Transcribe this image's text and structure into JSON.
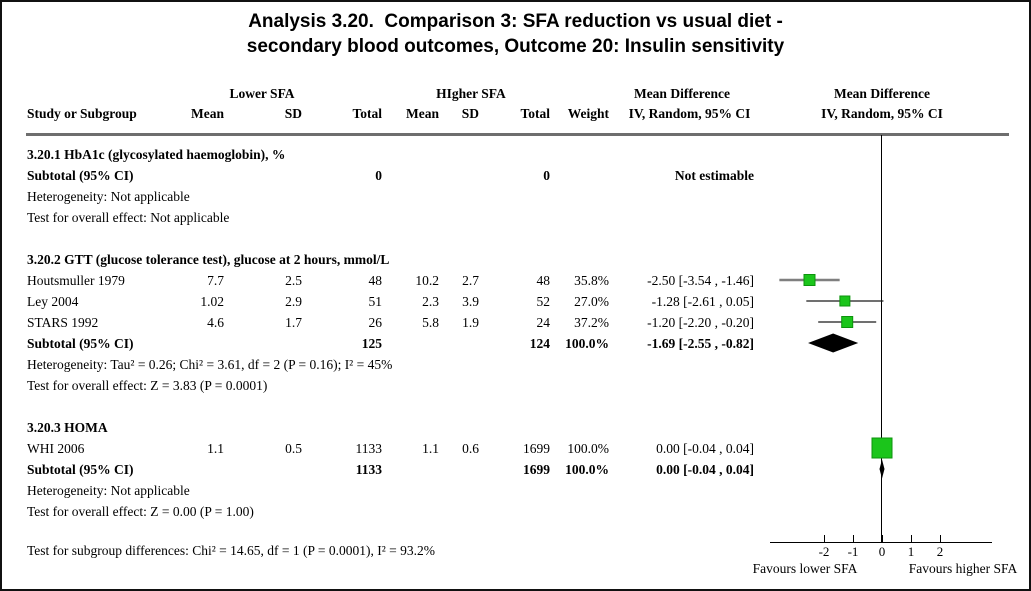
{
  "title": {
    "line1": "Analysis 3.20.  Comparison 3: SFA reduction vs usual diet -",
    "line2": "secondary blood outcomes, Outcome 20: Insulin sensitivity"
  },
  "header": {
    "group_lower": "Lower SFA",
    "group_higher": "HIgher SFA",
    "mean_difference_stats": "Mean Difference",
    "mean_difference_plot": "Mean Difference",
    "study": "Study or Subgroup",
    "mean1": "Mean",
    "sd1": "SD",
    "total1": "Total",
    "mean2": "Mean",
    "sd2": "SD",
    "total2": "Total",
    "weight": "Weight",
    "iv_stats": "IV, Random, 95% CI",
    "iv_plot": "IV, Random, 95% CI"
  },
  "sections": [
    {
      "heading": "3.20.1 HbA1c (glycosylated haemoglobin), %",
      "rows": [
        {
          "type": "subtotal",
          "study": "Subtotal (95% CI)",
          "total1": "0",
          "total2": "0",
          "ci": "Not estimable"
        }
      ],
      "footnotes": [
        "Heterogeneity: Not applicable",
        "Test for overall effect: Not applicable"
      ]
    },
    {
      "heading": "3.20.2 GTT (glucose tolerance test), glucose at 2 hours, mmol/L",
      "rows": [
        {
          "type": "study",
          "study": "Houtsmuller 1979",
          "mean1": "7.7",
          "sd1": "2.5",
          "total1": "48",
          "mean2": "10.2",
          "sd2": "2.7",
          "total2": "48",
          "weight": "35.8%",
          "ci": "-2.50 [-3.54 , -1.46]"
        },
        {
          "type": "study",
          "study": "Ley 2004",
          "mean1": "1.02",
          "sd1": "2.9",
          "total1": "51",
          "mean2": "2.3",
          "sd2": "3.9",
          "total2": "52",
          "weight": "27.0%",
          "ci": "-1.28 [-2.61 , 0.05]"
        },
        {
          "type": "study",
          "study": "STARS 1992",
          "mean1": "4.6",
          "sd1": "1.7",
          "total1": "26",
          "mean2": "5.8",
          "sd2": "1.9",
          "total2": "24",
          "weight": "37.2%",
          "ci": "-1.20 [-2.20 , -0.20]"
        },
        {
          "type": "subtotal",
          "study": "Subtotal (95% CI)",
          "total1": "125",
          "total2": "124",
          "weight": "100.0%",
          "ci": "-1.69 [-2.55 , -0.82]"
        }
      ],
      "footnotes": [
        "Heterogeneity: Tau² = 0.26; Chi² = 3.61, df = 2 (P = 0.16); I² = 45%",
        "Test for overall effect: Z = 3.83 (P = 0.0001)"
      ]
    },
    {
      "heading": "3.20.3 HOMA",
      "rows": [
        {
          "type": "study",
          "study": "WHI 2006",
          "mean1": "1.1",
          "sd1": "0.5",
          "total1": "1133",
          "mean2": "1.1",
          "sd2": "0.6",
          "total2": "1699",
          "weight": "100.0%",
          "ci": "0.00 [-0.04 , 0.04]"
        },
        {
          "type": "subtotal",
          "study": "Subtotal (95% CI)",
          "total1": "1133",
          "total2": "1699",
          "weight": "100.0%",
          "ci": "0.00 [-0.04 , 0.04]"
        }
      ],
      "footnotes": [
        "Heterogeneity: Not applicable",
        "Test for overall effect: Z = 0.00 (P = 1.00)"
      ]
    }
  ],
  "footer": "Test for subgroup differences: Chi² = 14.65, df = 1 (P = 0.0001), I² = 93.2%",
  "axis": {
    "tick_labels": [
      "-2",
      "-1",
      "0",
      "1",
      "2"
    ],
    "favours_left": "Favours lower SFA",
    "favours_right": "Favours higher SFA"
  },
  "colors": {
    "marker_green_fill": "#1bc51b",
    "marker_green_stroke": "#0d930d",
    "diamond_black": "#000000",
    "header_rule_gray": "#6e6e6e"
  },
  "chart_data": {
    "type": "scatter",
    "subtype": "forest_plot_mean_difference",
    "title": "Analysis 3.20. Comparison 3: SFA reduction vs usual diet - secondary blood outcomes, Outcome 20: Insulin sensitivity",
    "effect_measure": "Mean Difference, IV, Random, 95% CI",
    "x_ticks": [
      -2,
      -1,
      0,
      1,
      2
    ],
    "x_axis_drawn_range": [
      -3.86,
      3.79
    ],
    "zero_line": 0,
    "favours_left": "Favours lower SFA",
    "favours_right": "Favours higher SFA",
    "entries": [
      {
        "label": "Houtsmuller 1979",
        "shape": "square",
        "md": -2.5,
        "ci_low": -3.54,
        "ci_high": -1.46,
        "weight_pct": 35.8,
        "section": 1,
        "row": 0,
        "size": 11,
        "line_color": "#7f7f7f",
        "line_width": 2.4
      },
      {
        "label": "Ley 2004",
        "shape": "square",
        "md": -1.28,
        "ci_low": -2.61,
        "ci_high": 0.05,
        "weight_pct": 27.0,
        "section": 1,
        "row": 1,
        "size": 10,
        "line_color": "#1a1a1a",
        "line_width": 1.3
      },
      {
        "label": "STARS 1992",
        "shape": "square",
        "md": -1.2,
        "ci_low": -2.2,
        "ci_high": -0.2,
        "weight_pct": 37.2,
        "section": 1,
        "row": 2,
        "size": 11,
        "line_color": "#1a1a1a",
        "line_width": 1.3
      },
      {
        "label": "Subtotal GTT (95% CI)",
        "shape": "diamond",
        "md": -1.69,
        "ci_low": -2.55,
        "ci_high": -0.82,
        "weight_pct": 100.0,
        "section": 1,
        "row": 3
      },
      {
        "label": "WHI 2006",
        "shape": "square",
        "md": 0.0,
        "ci_low": -0.04,
        "ci_high": 0.04,
        "weight_pct": 100.0,
        "section": 2,
        "row": 0,
        "size": 20,
        "line_color": "#1a1a1a",
        "line_width": 1.3
      },
      {
        "label": "Subtotal HOMA (95% CI)",
        "shape": "diamond",
        "md": 0.0,
        "ci_low": -0.04,
        "ci_high": 0.04,
        "weight_pct": 100.0,
        "section": 2,
        "row": 1
      }
    ]
  }
}
